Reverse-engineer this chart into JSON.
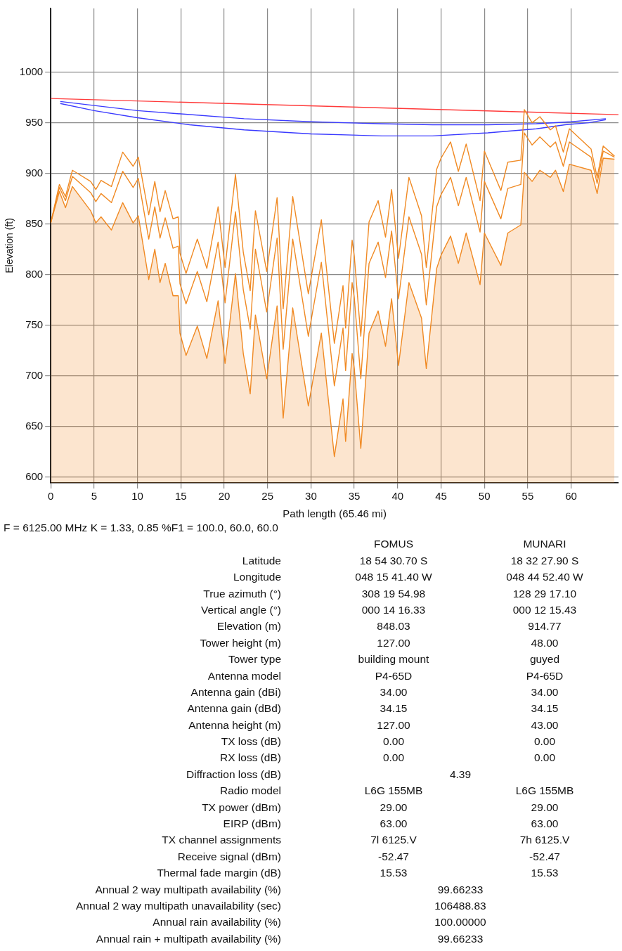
{
  "chart_data": {
    "type": "line",
    "xlabel": "Path length (65.46 mi)",
    "ylabel": "Elevation (ft)",
    "xlim": [
      0,
      65.46
    ],
    "xticks": [
      0,
      5,
      10,
      15,
      20,
      25,
      30,
      35,
      40,
      45,
      50,
      55,
      60
    ],
    "ylim": [
      594,
      1063
    ],
    "yticks": [
      600,
      650,
      700,
      750,
      800,
      850,
      900,
      950,
      1000
    ],
    "grid": true,
    "legend": false,
    "marker": "none",
    "line_style": "solid",
    "series": [
      {
        "type": "area",
        "color": "#f08a24",
        "x": [
          0,
          1,
          1.7,
          2.5,
          4.6,
          5.2,
          5.8,
          7,
          8.3,
          9.5,
          10.1,
          11.3,
          12,
          12.6,
          13.2,
          14.1,
          14.7,
          14.9,
          15.6,
          16.9,
          18,
          19.3,
          20.1,
          21.3,
          22.2,
          23,
          23.6,
          24.9,
          26.1,
          26.8,
          27.9,
          29.7,
          31.2,
          32.7,
          33.7,
          34,
          34.75,
          35,
          35.75,
          36.7,
          37.75,
          38.6,
          39.3,
          40.1,
          41.3,
          42.75,
          43.3,
          44.5,
          45,
          46.1,
          47,
          47.9,
          49.5,
          50,
          51.9,
          52.7,
          54.2,
          54.6,
          55.5,
          56.4,
          57.6,
          58.2,
          59.1,
          59.8,
          62.3,
          63,
          63.7,
          65
        ],
        "values": [
          851,
          882,
          866,
          887,
          863,
          851,
          857,
          844,
          871,
          851,
          858,
          795,
          825,
          792,
          811,
          779,
          779,
          742,
          720,
          749,
          717,
          774,
          712,
          801,
          722,
          682,
          760,
          697,
          769,
          658,
          767,
          670,
          742,
          620,
          677,
          635,
          722,
          707,
          628,
          742,
          764,
          729,
          776,
          710,
          792,
          757,
          707,
          806,
          819,
          838,
          811,
          841,
          790,
          841,
          809,
          841,
          849,
          901,
          892,
          903,
          896,
          903,
          882,
          909,
          903,
          880,
          915,
          914
        ]
      },
      {
        "color": "#f08a24",
        "x": [
          0,
          1,
          1.7,
          2.5,
          4.6,
          5.2,
          5.8,
          7,
          8.3,
          9.5,
          10.1,
          11.3,
          12,
          12.6,
          13.2,
          14.1,
          14.7,
          14.9,
          15.6,
          16.9,
          18,
          19.3,
          20.1,
          21.3,
          22.2,
          23,
          23.6,
          24.9,
          26.1,
          26.8,
          27.9,
          29.7,
          31.2,
          32.7,
          33.7,
          34,
          34.75,
          35,
          35.75,
          36.7,
          37.75,
          38.6,
          39.3,
          40.1,
          41.3,
          42.75,
          43.3,
          44.5,
          45,
          46.1,
          47,
          47.9,
          49.5,
          50,
          51.9,
          52.7,
          54.2,
          54.6,
          55.5,
          56.4,
          57.6,
          58.2,
          59.1,
          59.8,
          62.3,
          63,
          63.7,
          65
        ],
        "values": [
          851,
          886,
          873,
          897,
          881,
          872,
          880,
          871,
          902,
          886,
          895,
          835,
          867,
          836,
          856,
          826,
          828,
          791,
          771,
          803,
          773,
          832,
          772,
          862,
          785,
          746,
          825,
          763,
          836,
          726,
          835,
          739,
          812,
          690,
          747,
          705,
          792,
          777,
          697,
          811,
          832,
          797,
          843,
          776,
          857,
          820,
          770,
          867,
          879,
          896,
          868,
          896,
          842,
          892,
          855,
          885,
          889,
          940,
          928,
          936,
          926,
          931,
          907,
          931,
          916,
          890,
          922,
          916
        ]
      },
      {
        "color": "#f08a24",
        "x": [
          0,
          1,
          1.7,
          2.5,
          4.6,
          5.2,
          5.8,
          7,
          8.3,
          9.5,
          10.1,
          11.3,
          12,
          12.6,
          13.2,
          14.1,
          14.7,
          14.9,
          15.6,
          16.9,
          18,
          19.3,
          20.1,
          21.3,
          22.2,
          23,
          23.6,
          24.9,
          26.1,
          26.8,
          27.9,
          29.7,
          31.2,
          32.7,
          33.7,
          34,
          34.75,
          35,
          35.75,
          36.7,
          37.75,
          38.6,
          39.3,
          40.1,
          41.3,
          42.75,
          43.3,
          44.5,
          45,
          46.1,
          47,
          47.9,
          49.5,
          50,
          51.9,
          52.7,
          54.2,
          54.6,
          55.5,
          56.4,
          57.6,
          58.2,
          59.1,
          59.8,
          62.3,
          63,
          63.7,
          65
        ],
        "values": [
          851,
          889,
          877,
          903,
          892,
          884,
          893,
          887,
          921,
          907,
          916,
          859,
          892,
          862,
          883,
          855,
          857,
          821,
          801,
          835,
          806,
          867,
          807,
          899,
          822,
          784,
          863,
          803,
          876,
          766,
          877,
          781,
          854,
          732,
          789,
          747,
          834,
          818,
          739,
          852,
          873,
          837,
          884,
          816,
          896,
          858,
          807,
          904,
          915,
          931,
          902,
          929,
          873,
          922,
          883,
          911,
          913,
          963,
          950,
          956,
          943,
          947,
          921,
          944,
          924,
          896,
          927,
          917
        ]
      },
      {
        "color": "#ff3b3b",
        "x": [
          0,
          65.46
        ],
        "values": [
          974,
          958
        ]
      },
      {
        "color": "#3a3aff",
        "x": [
          1.1,
          10,
          22.3,
          30,
          38,
          44,
          50.4,
          56,
          60,
          64
        ],
        "values": [
          971,
          962,
          954,
          951,
          949,
          948,
          948,
          949,
          951,
          954
        ]
      },
      {
        "color": "#3a3aff",
        "x": [
          1.1,
          5,
          10,
          16,
          22.3,
          30,
          38.2,
          44,
          50.4,
          56,
          59.3,
          62,
          64
        ],
        "values": [
          969,
          962,
          955,
          948,
          943,
          939,
          937,
          937,
          940,
          944,
          948,
          950,
          953
        ]
      }
    ],
    "annotations": [
      "F = 6125.00 MHz K = 1.33, 0.85 %F1 = 100.0, 60.0, 60.0",
      "\tFOMUS\tMUNARI",
      "Latitude\t18 54 30.70 S\t18 32 27.90 S",
      "Longitude\t048 15 41.40 W\t048 44 52.40 W",
      "True azimuth (°)\t308 19 54.98\t128 29 17.10",
      "Vertical angle (°)\t000 14 16.33\t000 12 15.43",
      "Elevation (m)\t848.03\t914.77",
      "Tower height (m)\t127.00\t48.00",
      "Tower type\tbuilding mount\tguyed",
      "Antenna model\tP4-65D\tP4-65D",
      "Antenna gain (dBi)\t34.00\t34.00",
      "Antenna gain (dBd)\t34.15\t34.15",
      "Antenna height (m)\t127.00\t43.00",
      "TX loss (dB)\t0.00\t0.00",
      "RX loss (dB)\t0.00\t0.00",
      "Diffraction loss (dB)\t4.39",
      "Radio model\tL6G 155MB\tL6G 155MB",
      "TX power (dBm)\t29.00\t29.00",
      "EIRP (dBm)\t63.00\t63.00",
      "TX channel assignments\t7l 6125.V\t7h 6125.V",
      "Receive signal (dBm)\t-52.47\t-52.47",
      "Thermal fade margin (dB)\t15.53\t15.53",
      "Annual 2 way multipath availability (%)\t99.66233",
      "Annual 2 way multipath unavailability (sec)\t106488.83",
      "Annual rain availability (%)\t100.00000",
      "Annual rain + multipath availability (%)\t99.66233"
    ]
  }
}
